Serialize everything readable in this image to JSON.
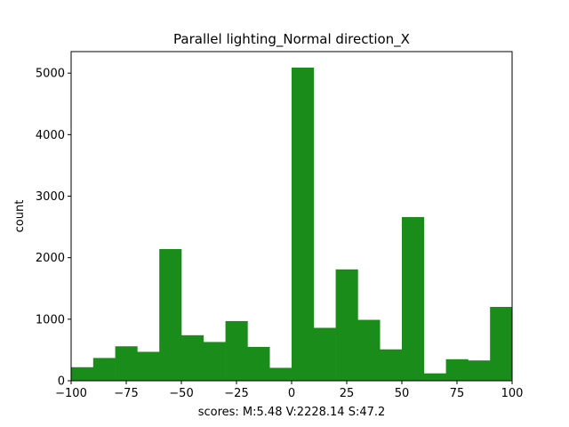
{
  "chart_data": {
    "type": "bar",
    "title": "Parallel lighting_Normal direction_X",
    "xlabel": "scores: M:5.48 V:2228.14 S:47.2",
    "ylabel": "count",
    "xlim": [
      -100,
      100
    ],
    "ylim": [
      0,
      5350
    ],
    "bar_color": "#1a8c1a",
    "bin_edges": [
      -100,
      -90,
      -80,
      -70,
      -60,
      -50,
      -40,
      -30,
      -20,
      -10,
      0,
      10,
      20,
      30,
      40,
      50,
      60,
      70,
      80,
      90,
      100
    ],
    "values": [
      220,
      370,
      560,
      470,
      2140,
      740,
      630,
      970,
      550,
      210,
      5090,
      860,
      1810,
      990,
      510,
      2660,
      120,
      350,
      330,
      1200
    ],
    "x_ticks": [
      -100,
      -75,
      -50,
      -25,
      0,
      25,
      50,
      75,
      100
    ],
    "x_tick_labels": [
      "−100",
      "−75",
      "−50",
      "−25",
      "0",
      "25",
      "50",
      "75",
      "100"
    ],
    "y_ticks": [
      0,
      1000,
      2000,
      3000,
      4000,
      5000
    ],
    "y_tick_labels": [
      "0",
      "1000",
      "2000",
      "3000",
      "4000",
      "5000"
    ],
    "grid": false,
    "legend": "none"
  }
}
